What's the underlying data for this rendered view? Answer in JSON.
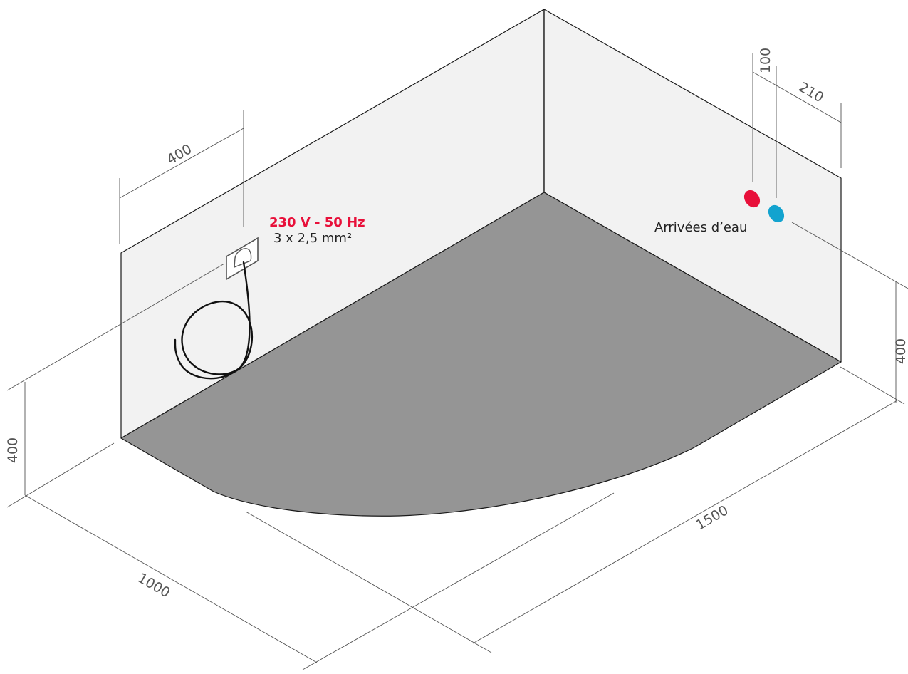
{
  "electrical": {
    "voltage_label": "230 V - 50 Hz",
    "cable_label": "3 x 2,5 mm²"
  },
  "water": {
    "label": "Arrivées d’eau"
  },
  "dimensions": {
    "socket_offset": "400",
    "depth": "1000",
    "length": "1500",
    "height_left": "400",
    "height_right": "400",
    "inlet_spacing": "100",
    "inlet_offset": "210"
  },
  "colors": {
    "power_label": "#e8103a",
    "hot_water": "#e8103a",
    "cold_water": "#13a3cf",
    "floor": "#959595",
    "wall": "#f2f2f2"
  },
  "icons": {
    "socket": "electrical-socket-icon",
    "cable": "coiled-cable-icon",
    "hot_inlet": "hot-water-inlet-icon",
    "cold_inlet": "cold-water-inlet-icon"
  }
}
